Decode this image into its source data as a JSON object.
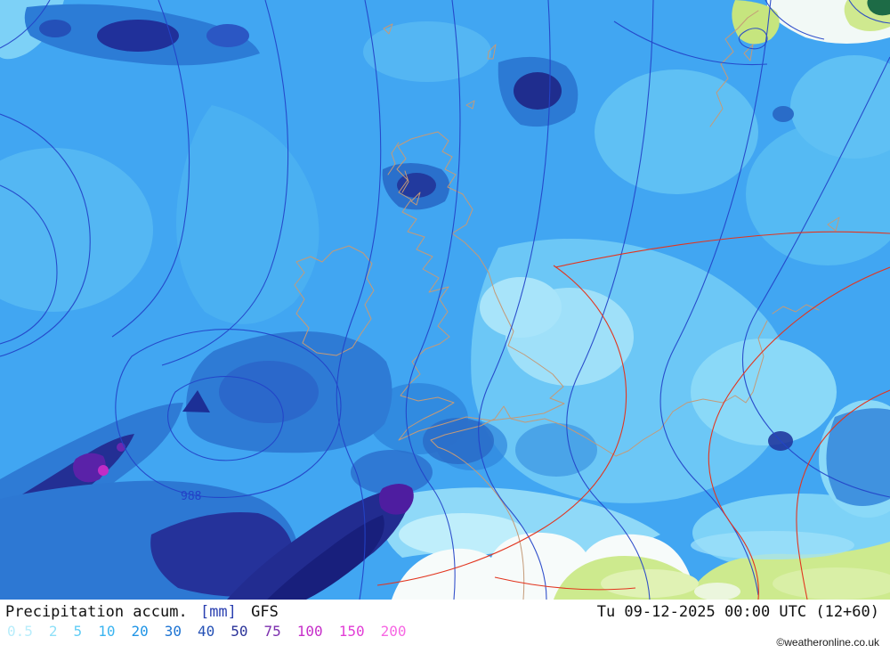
{
  "map": {
    "pressure_label": "988",
    "palette": {
      "sea_base": "#41a6f2",
      "coast_tan": "#c49a78",
      "isobar_blue": "#2343c8",
      "front_red": "#e2351f",
      "land_green": "#cdea8e",
      "land_white": "#f7fbfa"
    }
  },
  "footer": {
    "title": {
      "label": "Precipitation accum.",
      "unit": "[mm]",
      "model": "GFS"
    },
    "timestamp": "Tu 09-12-2025 00:00 UTC (12+60)",
    "legend": [
      {
        "value": "0.5",
        "color": "#b8edfb"
      },
      {
        "value": "2",
        "color": "#8fe0f8"
      },
      {
        "value": "5",
        "color": "#62cdf5"
      },
      {
        "value": "10",
        "color": "#3ab4f0"
      },
      {
        "value": "20",
        "color": "#2195e6"
      },
      {
        "value": "30",
        "color": "#1d74d3"
      },
      {
        "value": "40",
        "color": "#2450b5"
      },
      {
        "value": "50",
        "color": "#2b3399"
      },
      {
        "value": "75",
        "color": "#7c2fae"
      },
      {
        "value": "100",
        "color": "#c62fc9"
      },
      {
        "value": "150",
        "color": "#e23ed6"
      },
      {
        "value": "200",
        "color": "#f768e3"
      }
    ],
    "copyright": "©weatheronline.co.uk"
  }
}
